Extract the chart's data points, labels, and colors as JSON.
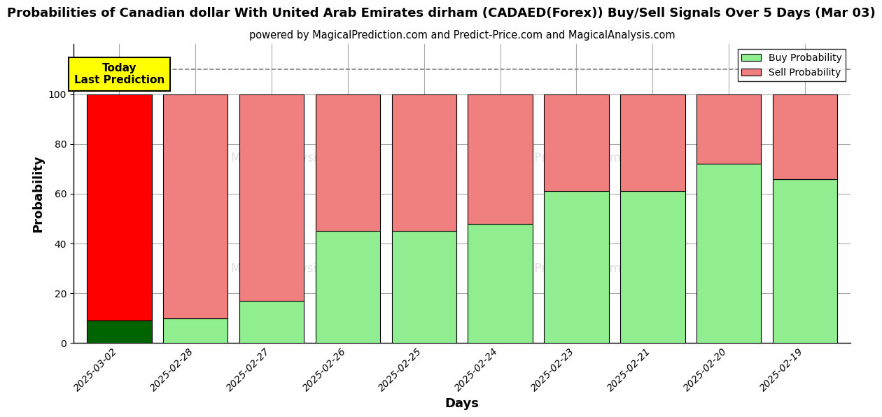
{
  "title": "Probabilities of Canadian dollar With United Arab Emirates dirham (CADAED(Forex)) Buy/Sell Signals Over 5 Days (Mar 03)",
  "subtitle": "powered by MagicalPrediction.com and Predict-Price.com and MagicalAnalysis.com",
  "xlabel": "Days",
  "ylabel": "Probability",
  "categories": [
    "2025-03-02",
    "2025-02-28",
    "2025-02-27",
    "2025-02-26",
    "2025-02-25",
    "2025-02-24",
    "2025-02-23",
    "2025-02-21",
    "2025-02-20",
    "2025-02-19"
  ],
  "buy_values": [
    9,
    10,
    17,
    45,
    45,
    48,
    61,
    61,
    72,
    66
  ],
  "sell_values": [
    91,
    90,
    83,
    55,
    55,
    52,
    39,
    39,
    28,
    34
  ],
  "buy_colors": [
    "#006400",
    "#90EE90",
    "#90EE90",
    "#90EE90",
    "#90EE90",
    "#90EE90",
    "#90EE90",
    "#90EE90",
    "#90EE90",
    "#90EE90"
  ],
  "sell_colors": [
    "#ff0000",
    "#F08080",
    "#F08080",
    "#F08080",
    "#F08080",
    "#F08080",
    "#F08080",
    "#F08080",
    "#F08080",
    "#F08080"
  ],
  "legend_buy_color": "#90EE90",
  "legend_sell_color": "#F08080",
  "today_box_color": "#ffff00",
  "today_text": "Today\nLast Prediction",
  "dashed_line_y": 110,
  "ylim": [
    0,
    120
  ],
  "yticks": [
    0,
    20,
    40,
    60,
    80,
    100
  ],
  "background_color": "#ffffff",
  "plot_bg_color": "#ffffff",
  "grid_color": "#aaaaaa",
  "title_fontsize": 13,
  "subtitle_fontsize": 10.5,
  "axis_label_fontsize": 13,
  "tick_fontsize": 10,
  "bar_width": 0.85
}
